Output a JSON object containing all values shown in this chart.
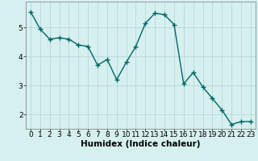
{
  "x": [
    0,
    1,
    2,
    3,
    4,
    5,
    6,
    7,
    8,
    9,
    10,
    11,
    12,
    13,
    14,
    15,
    16,
    17,
    18,
    19,
    20,
    21,
    22,
    23
  ],
  "y": [
    5.55,
    4.95,
    4.6,
    4.65,
    4.6,
    4.4,
    4.35,
    3.7,
    3.9,
    3.2,
    3.8,
    4.35,
    5.15,
    5.5,
    5.45,
    5.1,
    3.05,
    3.45,
    2.95,
    2.55,
    2.15,
    1.65,
    1.75,
    1.75
  ],
  "line_color": "#006666",
  "marker": "D",
  "marker_size": 2.2,
  "background_color": "#d6f0f0",
  "grid_color": "#b8d8d8",
  "xlabel": "Humidex (Indice chaleur)",
  "xlim": [
    -0.5,
    23.5
  ],
  "ylim": [
    1.5,
    5.9
  ],
  "yticks": [
    2,
    3,
    4,
    5
  ],
  "xticks": [
    0,
    1,
    2,
    3,
    4,
    5,
    6,
    7,
    8,
    9,
    10,
    11,
    12,
    13,
    14,
    15,
    16,
    17,
    18,
    19,
    20,
    21,
    22,
    23
  ],
  "xlabel_fontsize": 7.5,
  "tick_fontsize": 6.5,
  "line_width": 1.0
}
